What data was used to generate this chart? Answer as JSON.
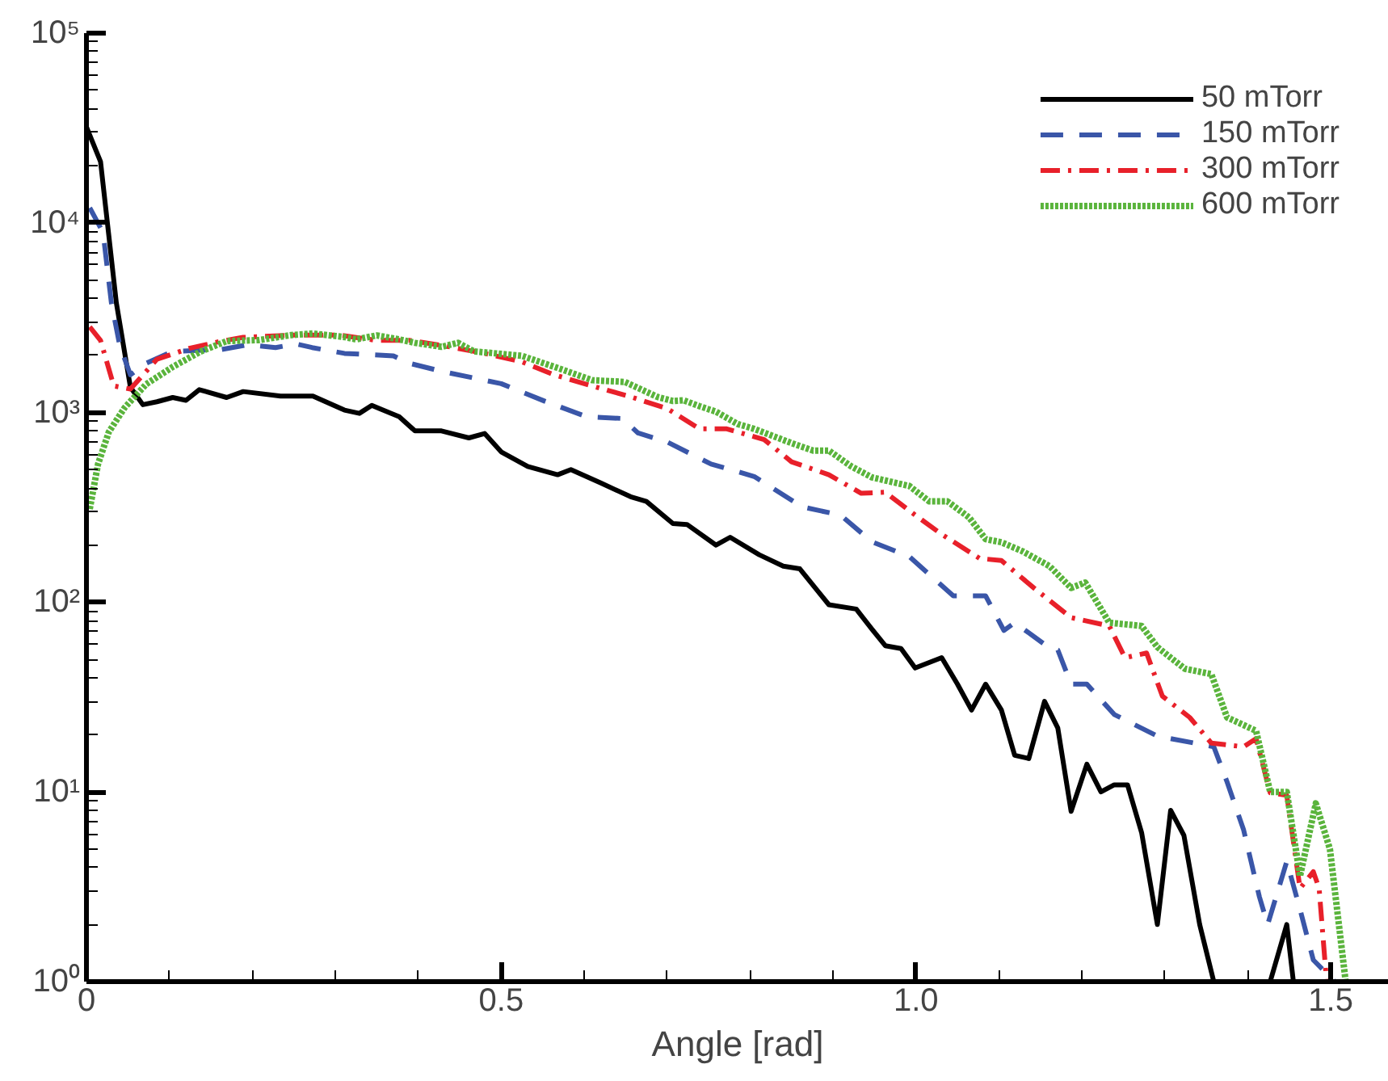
{
  "chart_data": {
    "type": "line",
    "xlabel": "Angle [rad]",
    "log": "y",
    "grid": false,
    "legend": "top right",
    "marker": "none",
    "xlim": [
      0,
      1.57
    ],
    "xticks": [
      0,
      0.5,
      {
        "value": 1.0,
        "label": "1.0"
      },
      1.5
    ],
    "ylim": [
      1,
      100000
    ],
    "yticks": [
      {
        "value": 1,
        "label": "10⁰"
      },
      {
        "value": 10,
        "label": "10¹"
      },
      {
        "value": 100,
        "label": "10²"
      },
      {
        "value": 1000,
        "label": "10³"
      },
      {
        "value": 10000,
        "label": "10⁴"
      },
      {
        "value": 100000,
        "label": "10⁵"
      }
    ],
    "series": [
      {
        "name": "50 mTorr",
        "color": "#000000",
        "line_style": "solid",
        "x": [
          0,
          0.017,
          0.036,
          0.053,
          0.068,
          0.085,
          0.104,
          0.12,
          0.136,
          0.169,
          0.189,
          0.234,
          0.273,
          0.311,
          0.329,
          0.344,
          0.377,
          0.396,
          0.428,
          0.461,
          0.48,
          0.5,
          0.532,
          0.568,
          0.584,
          0.62,
          0.656,
          0.675,
          0.707,
          0.724,
          0.759,
          0.776,
          0.811,
          0.84,
          0.86,
          0.895,
          0.928,
          0.947,
          0.963,
          0.982,
          0.999,
          1.031,
          1.05,
          1.067,
          1.084,
          1.103,
          1.119,
          1.136,
          1.155,
          1.171,
          1.187,
          1.206,
          1.223,
          1.239,
          1.255,
          1.272,
          1.291,
          1.307,
          1.323,
          1.342,
          1.359,
          1.39,
          1.427,
          1.447,
          1.455
        ],
        "values": [
          32000,
          21000,
          3800,
          1360,
          1100,
          1140,
          1200,
          1160,
          1320,
          1200,
          1290,
          1220,
          1220,
          1030,
          990,
          1090,
          950,
          800,
          800,
          735,
          775,
          620,
          520,
          470,
          500,
          425,
          360,
          340,
          260,
          257,
          200,
          220,
          178,
          155,
          150,
          97,
          92,
          72,
          59,
          57,
          45,
          51,
          37,
          27,
          37,
          27,
          15.6,
          15,
          30,
          21.7,
          7.9,
          14,
          10,
          10.9,
          10.9,
          6.1,
          2.0,
          8.0,
          5.9,
          2.0,
          1.0,
          null,
          1.0,
          2.0,
          1.0
        ]
      },
      {
        "name": "150 mTorr",
        "color": "#3a56a8",
        "line_style": "dashed",
        "x": [
          0.004,
          0.02,
          0.03,
          0.04,
          0.053,
          0.072,
          0.104,
          0.163,
          0.195,
          0.228,
          0.253,
          0.272,
          0.311,
          0.37,
          0.389,
          0.428,
          0.467,
          0.5,
          0.552,
          0.603,
          0.646,
          0.665,
          0.7,
          0.753,
          0.805,
          0.863,
          0.909,
          0.947,
          0.992,
          1.045,
          1.084,
          1.106,
          1.119,
          1.155,
          1.171,
          1.187,
          1.206,
          1.239,
          1.291,
          1.359,
          1.375,
          1.395,
          1.414,
          1.424,
          1.447,
          1.463,
          1.479,
          1.505
        ],
        "values": [
          12000,
          8900,
          3800,
          2270,
          1580,
          1820,
          2100,
          2150,
          2280,
          2200,
          2300,
          2200,
          2050,
          1990,
          1820,
          1650,
          1520,
          1420,
          1150,
          950,
          930,
          780,
          700,
          535,
          460,
          318,
          288,
          208,
          174,
          108,
          108,
          71,
          78,
          60,
          56,
          37,
          37,
          25.6,
          19.7,
          17.3,
          11.3,
          6.3,
          2.8,
          2.0,
          4.3,
          2.4,
          1.3,
          1.0
        ]
      },
      {
        "name": "300 mTorr",
        "color": "#e8202a",
        "line_style": "dashdot",
        "x": [
          0.004,
          0.017,
          0.033,
          0.053,
          0.085,
          0.124,
          0.163,
          0.189,
          0.247,
          0.305,
          0.35,
          0.389,
          0.428,
          0.48,
          0.525,
          0.564,
          0.61,
          0.656,
          0.7,
          0.739,
          0.772,
          0.817,
          0.85,
          0.895,
          0.934,
          0.963,
          0.999,
          1.031,
          1.077,
          1.103,
          1.142,
          1.187,
          1.233,
          1.252,
          1.278,
          1.297,
          1.33,
          1.356,
          1.395,
          1.41,
          1.427,
          1.447,
          1.463,
          1.479,
          1.486,
          1.495
        ],
        "values": [
          2830,
          2400,
          1380,
          1330,
          1910,
          2180,
          2380,
          2490,
          2560,
          2560,
          2400,
          2400,
          2260,
          2050,
          1850,
          1580,
          1380,
          1210,
          1050,
          820,
          820,
          720,
          550,
          470,
          375,
          380,
          288,
          228,
          170,
          166,
          119,
          83,
          75,
          51,
          54,
          32,
          24.7,
          18.1,
          17.3,
          19.1,
          9.9,
          9.6,
          3.1,
          3.8,
          3.1,
          1.0
        ]
      },
      {
        "name": "600 mTorr",
        "color": "#5ab43c",
        "line_style": "dotted",
        "x": [
          0.004,
          0.014,
          0.027,
          0.046,
          0.072,
          0.104,
          0.137,
          0.169,
          0.208,
          0.247,
          0.273,
          0.311,
          0.325,
          0.35,
          0.377,
          0.396,
          0.428,
          0.448,
          0.467,
          0.494,
          0.525,
          0.571,
          0.61,
          0.649,
          0.688,
          0.707,
          0.72,
          0.739,
          0.759,
          0.785,
          0.805,
          0.85,
          0.876,
          0.895,
          0.922,
          0.947,
          0.992,
          1.016,
          1.038,
          1.064,
          1.084,
          1.103,
          1.128,
          1.161,
          1.187,
          1.204,
          1.233,
          1.272,
          1.291,
          1.324,
          1.356,
          1.375,
          1.41,
          1.427,
          1.447,
          1.463,
          1.482,
          1.499,
          1.518
        ],
        "values": [
          310,
          535,
          790,
          1060,
          1410,
          1740,
          2090,
          2380,
          2410,
          2560,
          2610,
          2500,
          2430,
          2550,
          2430,
          2330,
          2220,
          2330,
          2100,
          2050,
          1990,
          1700,
          1480,
          1450,
          1210,
          1150,
          1160,
          1080,
          1010,
          870,
          820,
          690,
          630,
          630,
          520,
          455,
          410,
          340,
          340,
          280,
          215,
          207,
          186,
          155,
          119,
          127,
          78,
          75,
          58,
          44.6,
          41.8,
          24.7,
          21,
          10,
          10,
          3.6,
          8.7,
          5.0,
          1.0
        ]
      }
    ]
  }
}
